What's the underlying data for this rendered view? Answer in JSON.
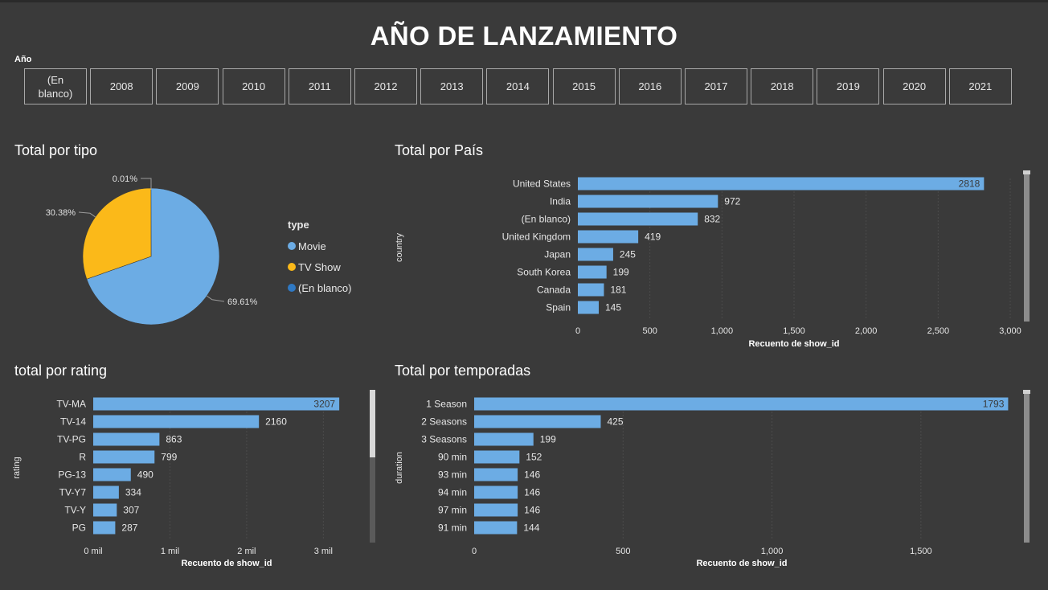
{
  "page": {
    "title": "AÑO DE LANZAMIENTO"
  },
  "slicer": {
    "label": "Año",
    "years": [
      "(En\nblanco)",
      "2008",
      "2009",
      "2010",
      "2011",
      "2012",
      "2013",
      "2014",
      "2015",
      "2016",
      "2017",
      "2018",
      "2019",
      "2020",
      "2021"
    ]
  },
  "colors": {
    "bar": "#6cace4",
    "movie": "#6cace4",
    "tvshow": "#fbb919",
    "blank": "#2f79c4",
    "background": "#3a3a3a"
  },
  "chart_data": [
    {
      "id": "tipo",
      "type": "pie",
      "title": "Total por tipo",
      "legend_title": "type",
      "legend_position": "right",
      "slices": [
        {
          "label": "Movie",
          "percent": 69.61,
          "display": "69.61%",
          "color": "#6cace4"
        },
        {
          "label": "TV Show",
          "percent": 30.38,
          "display": "30.38%",
          "color": "#fbb919"
        },
        {
          "label": "(En blanco)",
          "percent": 0.01,
          "display": "0.01%",
          "color": "#2f79c4"
        }
      ]
    },
    {
      "id": "pais",
      "type": "bar",
      "orientation": "horizontal",
      "title": "Total por País",
      "xlabel": "Recuento de show_id",
      "ylabel": "country",
      "xlim": [
        0,
        3000
      ],
      "grid": true,
      "ticks": [
        0,
        500,
        1000,
        1500,
        2000,
        2500,
        3000
      ],
      "tick_labels": [
        "0",
        "500",
        "1,000",
        "1,500",
        "2,000",
        "2,500",
        "3,000"
      ],
      "categories": [
        "United States",
        "India",
        "(En blanco)",
        "United Kingdom",
        "Japan",
        "South Korea",
        "Canada",
        "Spain"
      ],
      "values": [
        2818,
        972,
        832,
        419,
        245,
        199,
        181,
        145
      ]
    },
    {
      "id": "rating",
      "type": "bar",
      "orientation": "horizontal",
      "title": "total por rating",
      "xlabel": "Recuento de show_id",
      "ylabel": "rating",
      "xlim": [
        0,
        3300
      ],
      "grid": true,
      "ticks": [
        0,
        1000,
        2000,
        3000
      ],
      "tick_labels": [
        "0 mil",
        "1 mil",
        "2 mil",
        "3 mil"
      ],
      "categories": [
        "TV-MA",
        "TV-14",
        "TV-PG",
        "R",
        "PG-13",
        "TV-Y7",
        "TV-Y",
        "PG"
      ],
      "values": [
        3207,
        2160,
        863,
        799,
        490,
        334,
        307,
        287
      ]
    },
    {
      "id": "temporadas",
      "type": "bar",
      "orientation": "horizontal",
      "title": "Total por temporadas",
      "xlabel": "Recuento de show_id",
      "ylabel": "duration",
      "xlim": [
        0,
        1800
      ],
      "grid": true,
      "ticks": [
        0,
        500,
        1000,
        1500
      ],
      "tick_labels": [
        "0",
        "500",
        "1,000",
        "1,500"
      ],
      "categories": [
        "1 Season",
        "2 Seasons",
        "3 Seasons",
        "90 min",
        "93 min",
        "94 min",
        "97 min",
        "91 min"
      ],
      "values": [
        1793,
        425,
        199,
        152,
        146,
        146,
        146,
        144
      ]
    }
  ]
}
